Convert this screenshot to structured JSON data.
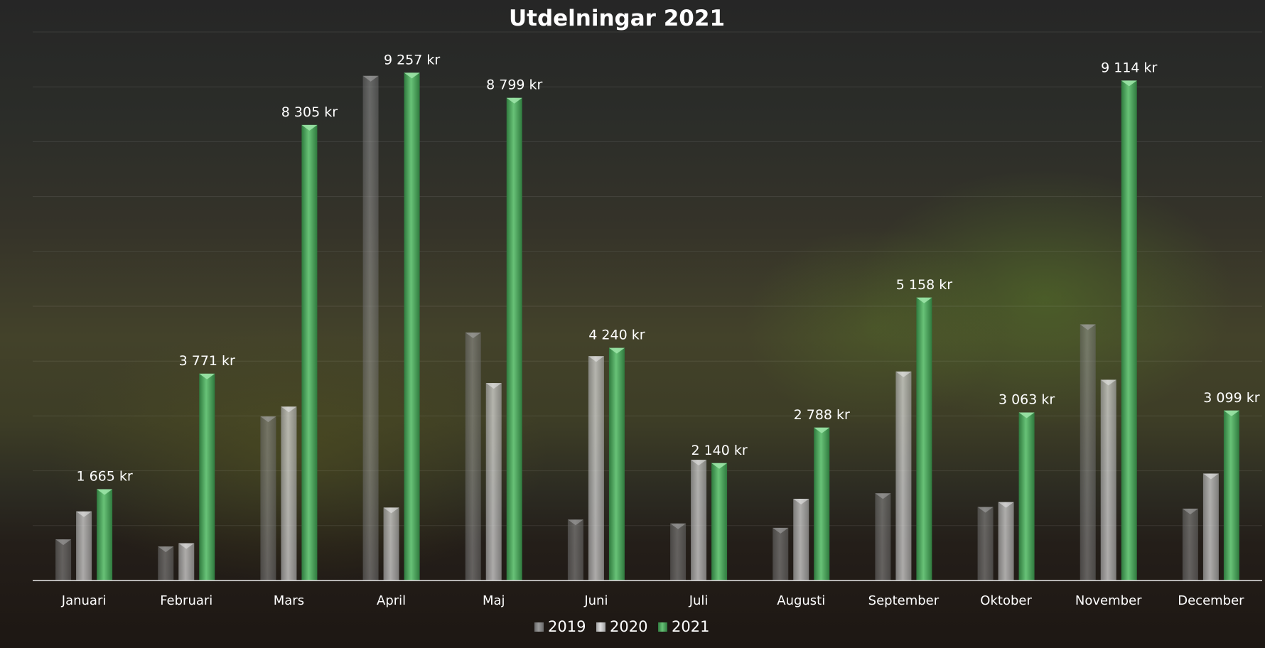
{
  "chart_data": {
    "type": "bar",
    "title": "Utdelningar 2021",
    "categories": [
      "Januari",
      "Februari",
      "Mars",
      "April",
      "Maj",
      "Juni",
      "Juli",
      "Augusti",
      "September",
      "Oktober",
      "November",
      "December"
    ],
    "series": [
      {
        "name": "2019",
        "values": [
          750,
          620,
          2990,
          9200,
          4520,
          1110,
          1040,
          960,
          1590,
          1340,
          4670,
          1310
        ],
        "color": "#8a8a8a"
      },
      {
        "name": "2020",
        "values": [
          1260,
          680,
          3170,
          1330,
          3600,
          4090,
          2200,
          1490,
          3810,
          1430,
          3660,
          1950
        ],
        "color": "#c9c9c9"
      },
      {
        "name": "2021",
        "values": [
          1665,
          3771,
          8305,
          9257,
          8799,
          4240,
          2140,
          2788,
          5158,
          3063,
          9114,
          3099
        ],
        "color": "#4caa5c"
      }
    ],
    "data_labels": [
      "1 665 kr",
      "3 771 kr",
      "8 305 kr",
      "9 257 kr",
      "8 799 kr",
      "4 240 kr",
      "2 140 kr",
      "2 788 kr",
      "5 158 kr",
      "3 063 kr",
      "9 114 kr",
      "3 099 kr"
    ],
    "ylim": [
      0,
      10000
    ],
    "xlabel": "",
    "ylabel": "",
    "grid": true,
    "legend": "bottom-center"
  }
}
